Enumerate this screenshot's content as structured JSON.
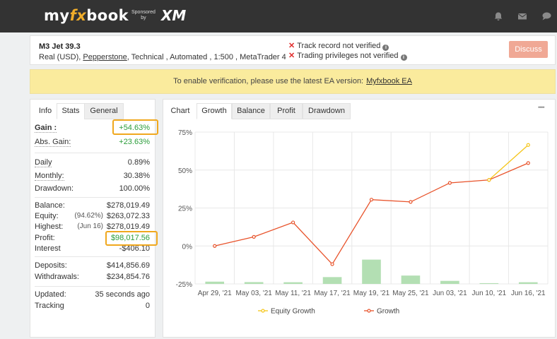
{
  "header": {
    "logo_text_my": "my",
    "logo_text_fx": "fx",
    "logo_text_book": "book",
    "sponsored_line1": "Sponsored",
    "sponsored_line2": "by",
    "sponsor_brand": "XM"
  },
  "account": {
    "name": "M3 Jet 39.3",
    "type": "Real (USD),",
    "broker": "Pepperstone",
    "details_rest": ", Technical , Automated , 1:500 , MetaTrader 4",
    "warning_track_record": "Track record not verified",
    "warning_trading_privileges": "Trading privileges not verified",
    "discuss_label": "Discuss"
  },
  "banner": {
    "text": "To enable verification, please use the latest EA version:",
    "link": "Myfxbook EA"
  },
  "left_tabs": [
    "Info",
    "Stats",
    "General"
  ],
  "stats": {
    "gain_label": "Gain :",
    "gain_value": "+54.63%",
    "abs_gain_label": "Abs. Gain:",
    "abs_gain_value": "+23.63%",
    "daily_label": "Daily",
    "daily_value": "0.89%",
    "monthly_label": "Monthly:",
    "monthly_value": "30.38%",
    "drawdown_label": "Drawdown:",
    "drawdown_value": "100.00%",
    "balance_label": "Balance:",
    "balance_value": "$278,019.49",
    "equity_label": "Equity:",
    "equity_sub": "(94.62%)",
    "equity_value": "$263,072.33",
    "highest_label": "Highest:",
    "highest_sub": "(Jun 16)",
    "highest_value": "$278,019.49",
    "profit_label": "Profit:",
    "profit_value": "$98,017.56",
    "interest_label": "Interest",
    "interest_value": "-$406.10",
    "deposits_label": "Deposits:",
    "deposits_value": "$414,856.69",
    "withdrawals_label": "Withdrawals:",
    "withdrawals_value": "$234,854.76",
    "updated_label": "Updated:",
    "updated_value": "35 seconds ago",
    "tracking_label": "Tracking",
    "tracking_value": "0"
  },
  "chart_tabs": [
    "Chart",
    "Growth",
    "Balance",
    "Profit",
    "Drawdown"
  ],
  "chart_menu": "••••",
  "colors": {
    "growth": "#e8532b",
    "equity_growth": "#f5c518",
    "bars": "#b3dfb3",
    "highlight": "#f0a81e",
    "positive": "#2a9d3a"
  },
  "chart_data": {
    "type": "line",
    "x": [
      "Apr 29, '21",
      "May 03, '21",
      "May 11, '21",
      "May 17, '21",
      "May 19, '21",
      "May 25, '21",
      "Jun 03, '21",
      "Jun 10, '21",
      "Jun 16, '21"
    ],
    "series": [
      {
        "name": "Growth",
        "values": [
          0,
          6,
          15.5,
          -12,
          30.5,
          29,
          41.5,
          43.5,
          54.6
        ]
      },
      {
        "name": "Equity Growth",
        "values": [
          null,
          null,
          null,
          null,
          null,
          null,
          null,
          43.5,
          66.5
        ]
      }
    ],
    "bars": {
      "values": [
        -23.5,
        -23.8,
        -23.9,
        -20.5,
        -9,
        -19.5,
        -23,
        -24.5,
        -23.9
      ]
    },
    "yticks": [
      "75%",
      "50%",
      "25%",
      "0%",
      "-25%"
    ],
    "ytick_values": [
      75,
      50,
      25,
      0,
      -25
    ],
    "ylim": [
      -25,
      75
    ],
    "grid": true,
    "legend": "bottom"
  }
}
